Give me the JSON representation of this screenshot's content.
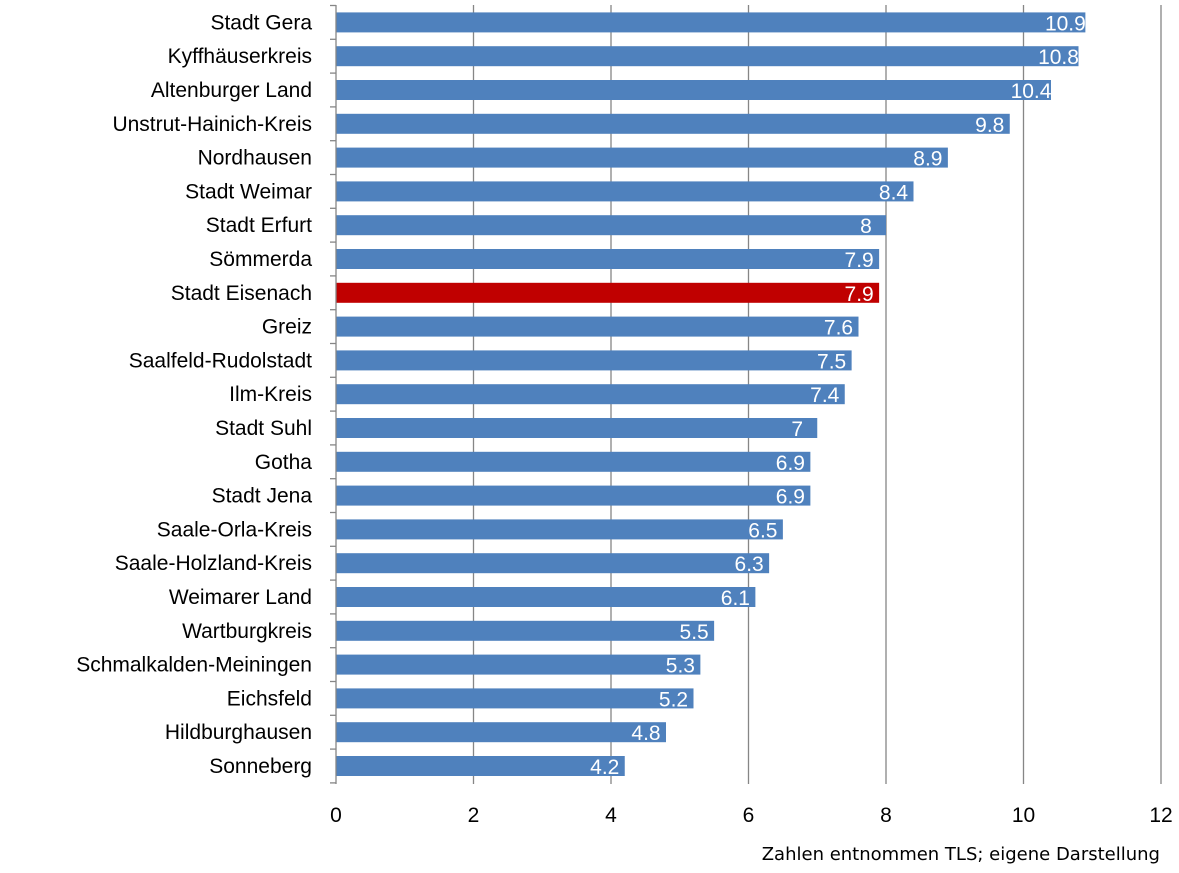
{
  "chart_data": {
    "type": "bar",
    "orientation": "horizontal",
    "categories": [
      "Stadt Gera",
      "Kyffhäuserkreis",
      "Altenburger Land",
      "Unstrut-Hainich-Kreis",
      "Nordhausen",
      "Stadt Weimar",
      "Stadt Erfurt",
      "Sömmerda",
      "Stadt Eisenach",
      "Greiz",
      "Saalfeld-Rudolstadt",
      "Ilm-Kreis",
      "Stadt Suhl",
      "Gotha",
      "Stadt Jena",
      "Saale-Orla-Kreis",
      "Saale-Holzland-Kreis",
      "Weimarer Land",
      "Wartburgkreis",
      "Schmalkalden-Meiningen",
      "Eichsfeld",
      "Hildburghausen",
      "Sonneberg"
    ],
    "values": [
      10.9,
      10.8,
      10.4,
      9.8,
      8.9,
      8.4,
      8,
      7.9,
      7.9,
      7.6,
      7.5,
      7.4,
      7,
      6.9,
      6.9,
      6.5,
      6.3,
      6.1,
      5.5,
      5.3,
      5.2,
      4.8,
      4.2
    ],
    "value_labels": [
      "10.9",
      "10.8",
      "10.4",
      "9.8",
      "8.9",
      "8.4",
      "8",
      "7.9",
      "7.9",
      "7.6",
      "7.5",
      "7.4",
      "7",
      "6.9",
      "6.9",
      "6.5",
      "6.3",
      "6.1",
      "5.5",
      "5.3",
      "5.2",
      "4.8",
      "4.2"
    ],
    "highlight_category": "Stadt Eisenach",
    "xlim": [
      0,
      12
    ],
    "x_ticks": [
      0,
      2,
      4,
      6,
      8,
      10,
      12
    ],
    "grid": true,
    "legend": "none",
    "colors": {
      "bar": "#4f81bd",
      "highlight": "#c00000",
      "grid": "#868686"
    }
  },
  "source_note": "Zahlen entnommen TLS; eigene Darstellung"
}
